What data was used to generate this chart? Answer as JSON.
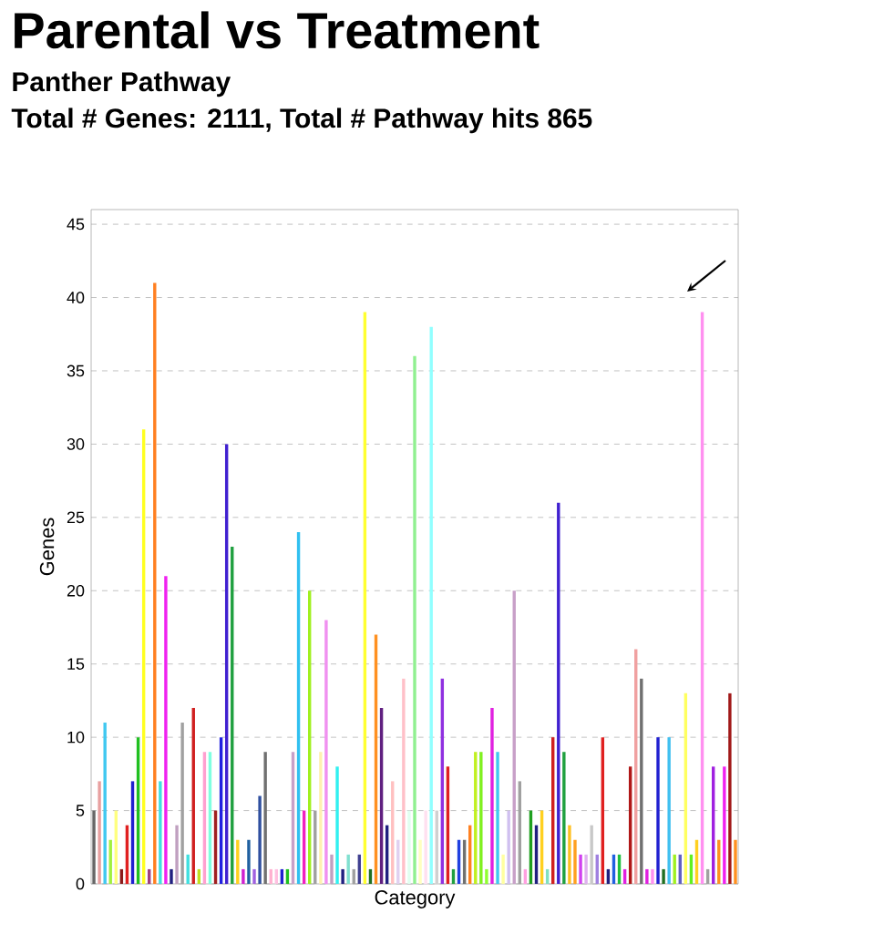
{
  "chart_data": {
    "type": "bar",
    "title": "Parental vs Treatment",
    "subtitle": "Panther Pathway",
    "annotations": [
      "Total # Genes: 2111, Total # Pathway hits 865"
    ],
    "xlabel": "Category",
    "ylabel": "Genes",
    "ylim": [
      0,
      46
    ],
    "yticks": [
      0,
      5,
      10,
      15,
      20,
      25,
      30,
      35,
      40,
      45
    ],
    "grid": "y",
    "categories": [
      null,
      null,
      null,
      null,
      null,
      null,
      null,
      null,
      null,
      null,
      null,
      null,
      null,
      null,
      null,
      null,
      null,
      null,
      null,
      null,
      null,
      null,
      null,
      null,
      null,
      null,
      null,
      null,
      null,
      null,
      null,
      null,
      null,
      null,
      null,
      null,
      null,
      null,
      null,
      null,
      null,
      null,
      null,
      null,
      null,
      null,
      null,
      null,
      null,
      null,
      null,
      null,
      null,
      null,
      null,
      null,
      null,
      null,
      null,
      null,
      null,
      null,
      null,
      null,
      null,
      null,
      null,
      null,
      null,
      null,
      null,
      null,
      null,
      null,
      null,
      null,
      null,
      null,
      null,
      null,
      null,
      null,
      null,
      null,
      null,
      null,
      null,
      null,
      null,
      null,
      null,
      null,
      null,
      null,
      null,
      null,
      null,
      null,
      null,
      null,
      null,
      null,
      null,
      null,
      null,
      null,
      null,
      null,
      null,
      null,
      null,
      null,
      null,
      null,
      null,
      null,
      null
    ],
    "values": [
      5,
      7,
      11,
      3,
      5,
      1,
      4,
      7,
      10,
      31,
      1,
      41,
      7,
      21,
      1,
      4,
      11,
      2,
      12,
      1,
      9,
      9,
      5,
      10,
      30,
      23,
      3,
      1,
      3,
      1,
      6,
      9,
      1,
      1,
      1,
      1,
      9,
      24,
      5,
      20,
      5,
      9,
      18,
      2,
      8,
      1,
      2,
      1,
      2,
      39,
      1,
      17,
      12,
      4,
      7,
      3,
      14,
      5,
      36,
      3,
      5,
      38,
      5,
      14,
      8,
      1,
      3,
      3,
      4,
      9,
      9,
      1,
      12,
      9,
      2,
      5,
      20,
      7,
      1,
      5,
      4,
      5,
      1,
      10,
      26,
      9,
      4,
      3,
      2,
      2,
      4,
      2,
      10,
      1,
      2,
      2,
      1,
      8,
      16,
      14,
      1,
      1,
      10,
      1,
      10,
      2,
      2,
      13,
      2,
      3,
      39,
      1,
      8,
      3,
      8,
      13,
      3
    ],
    "colors": [
      "#666666",
      "#e8a0a0",
      "#40c8f0",
      "#a0f040",
      "#ffff80",
      "#8b1a1a",
      "#e02020",
      "#2020d0",
      "#20c020",
      "#ffff20",
      "#a04080",
      "#ff7f20",
      "#40e0e0",
      "#f020f0",
      "#202080",
      "#c0a0c0",
      "#a0a0a0",
      "#40e0e0",
      "#d02020",
      "#c0e020",
      "#ffa0d0",
      "#80ffe0",
      "#a02020",
      "#2020e0",
      "#4020d0",
      "#20a040",
      "#ffd020",
      "#d020d0",
      "#2060a0",
      "#a060e0",
      "#3050a0",
      "#707070",
      "#ffb0d0",
      "#ffc0e0",
      "#2020d0",
      "#20c020",
      "#c8a0c8",
      "#30c0f0",
      "#f020c0",
      "#a0f020",
      "#a0a0a0",
      "#fff0b0",
      "#f090f0",
      "#c0a0c0",
      "#30f0f0",
      "#202080",
      "#80e0d0",
      "#a0a0a0",
      "#404090",
      "#ffff30",
      "#207020",
      "#ff9020",
      "#602080",
      "#202080",
      "#ffc0c0",
      "#e0d0f0",
      "#ffc0c8",
      "#e0fff0",
      "#90f090",
      "#ffffc0",
      "#ffe0f0",
      "#90ffff",
      "#d0d0d0",
      "#9030e0",
      "#e02020",
      "#20a040",
      "#2040e0",
      "#707070",
      "#ff8020",
      "#c0f020",
      "#80f020",
      "#90ff30",
      "#e020e0",
      "#40c8f0",
      "#ffffa0",
      "#d0c0f0",
      "#c8a0c8",
      "#a0a0a0",
      "#ffa0e0",
      "#20a020",
      "#202080",
      "#ffd020",
      "#80e0c0",
      "#d02020",
      "#4020d0",
      "#20a040",
      "#ffc020",
      "#ffa020",
      "#d040f0",
      "#e0b0f0",
      "#c8c8c8",
      "#a080e0",
      "#e02020",
      "#202080",
      "#2060e0",
      "#20c040",
      "#e020e0",
      "#b01818",
      "#f0a0a0",
      "#707070",
      "#e020e0",
      "#ff90f0",
      "#2020d0",
      "#207020",
      "#40c0f0",
      "#a0f020",
      "#6060c0",
      "#ffff60",
      "#60f020",
      "#ffd020",
      "#ff90f0",
      "#a0a0a0",
      "#a020e0",
      "#ff9020",
      "#f020f0",
      "#a01818",
      "#ff9020"
    ]
  }
}
